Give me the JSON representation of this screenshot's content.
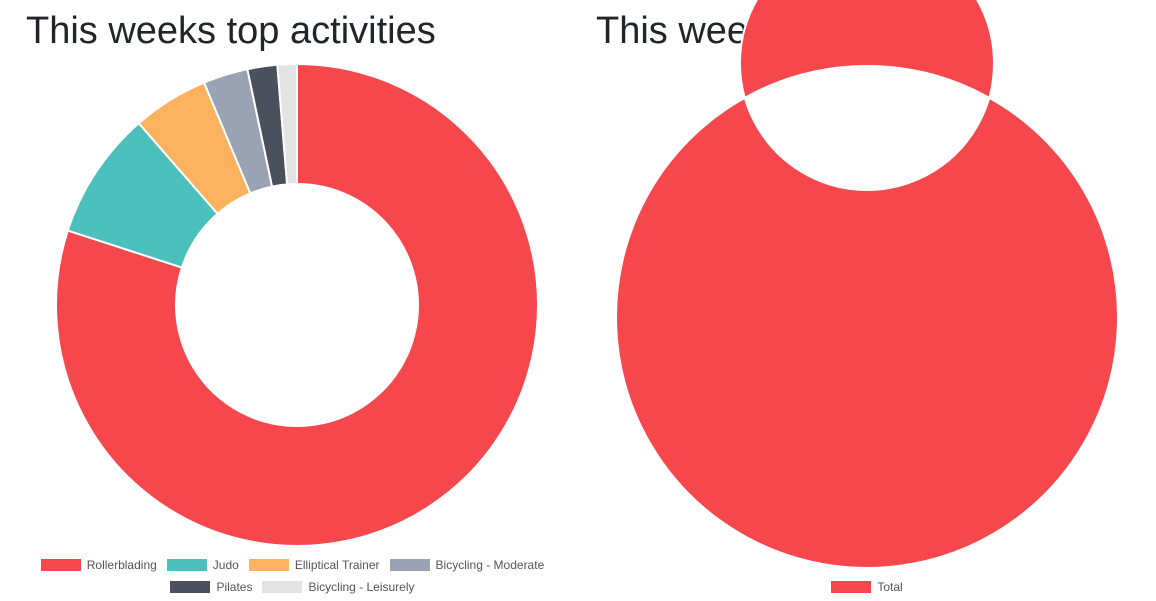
{
  "chart_data": [
    {
      "type": "doughnut",
      "title": "This weeks top activities",
      "categories": [
        "Rollerblading",
        "Judo",
        "Elliptical Trainer",
        "Bicycling - Moderate",
        "Pilates",
        "Bicycling - Leisurely"
      ],
      "values": [
        80,
        8.6,
        5.1,
        3,
        2,
        1.3
      ],
      "colors": [
        "#f5474c",
        "#4bc0bd",
        "#fdb25f",
        "#9aa3b3",
        "#4a505c",
        "#e3e3e3"
      ]
    },
    {
      "type": "doughnut",
      "title": "This weeks total",
      "categories": [
        "Total"
      ],
      "values": [
        100
      ],
      "colors": [
        "#f5474c"
      ]
    }
  ]
}
